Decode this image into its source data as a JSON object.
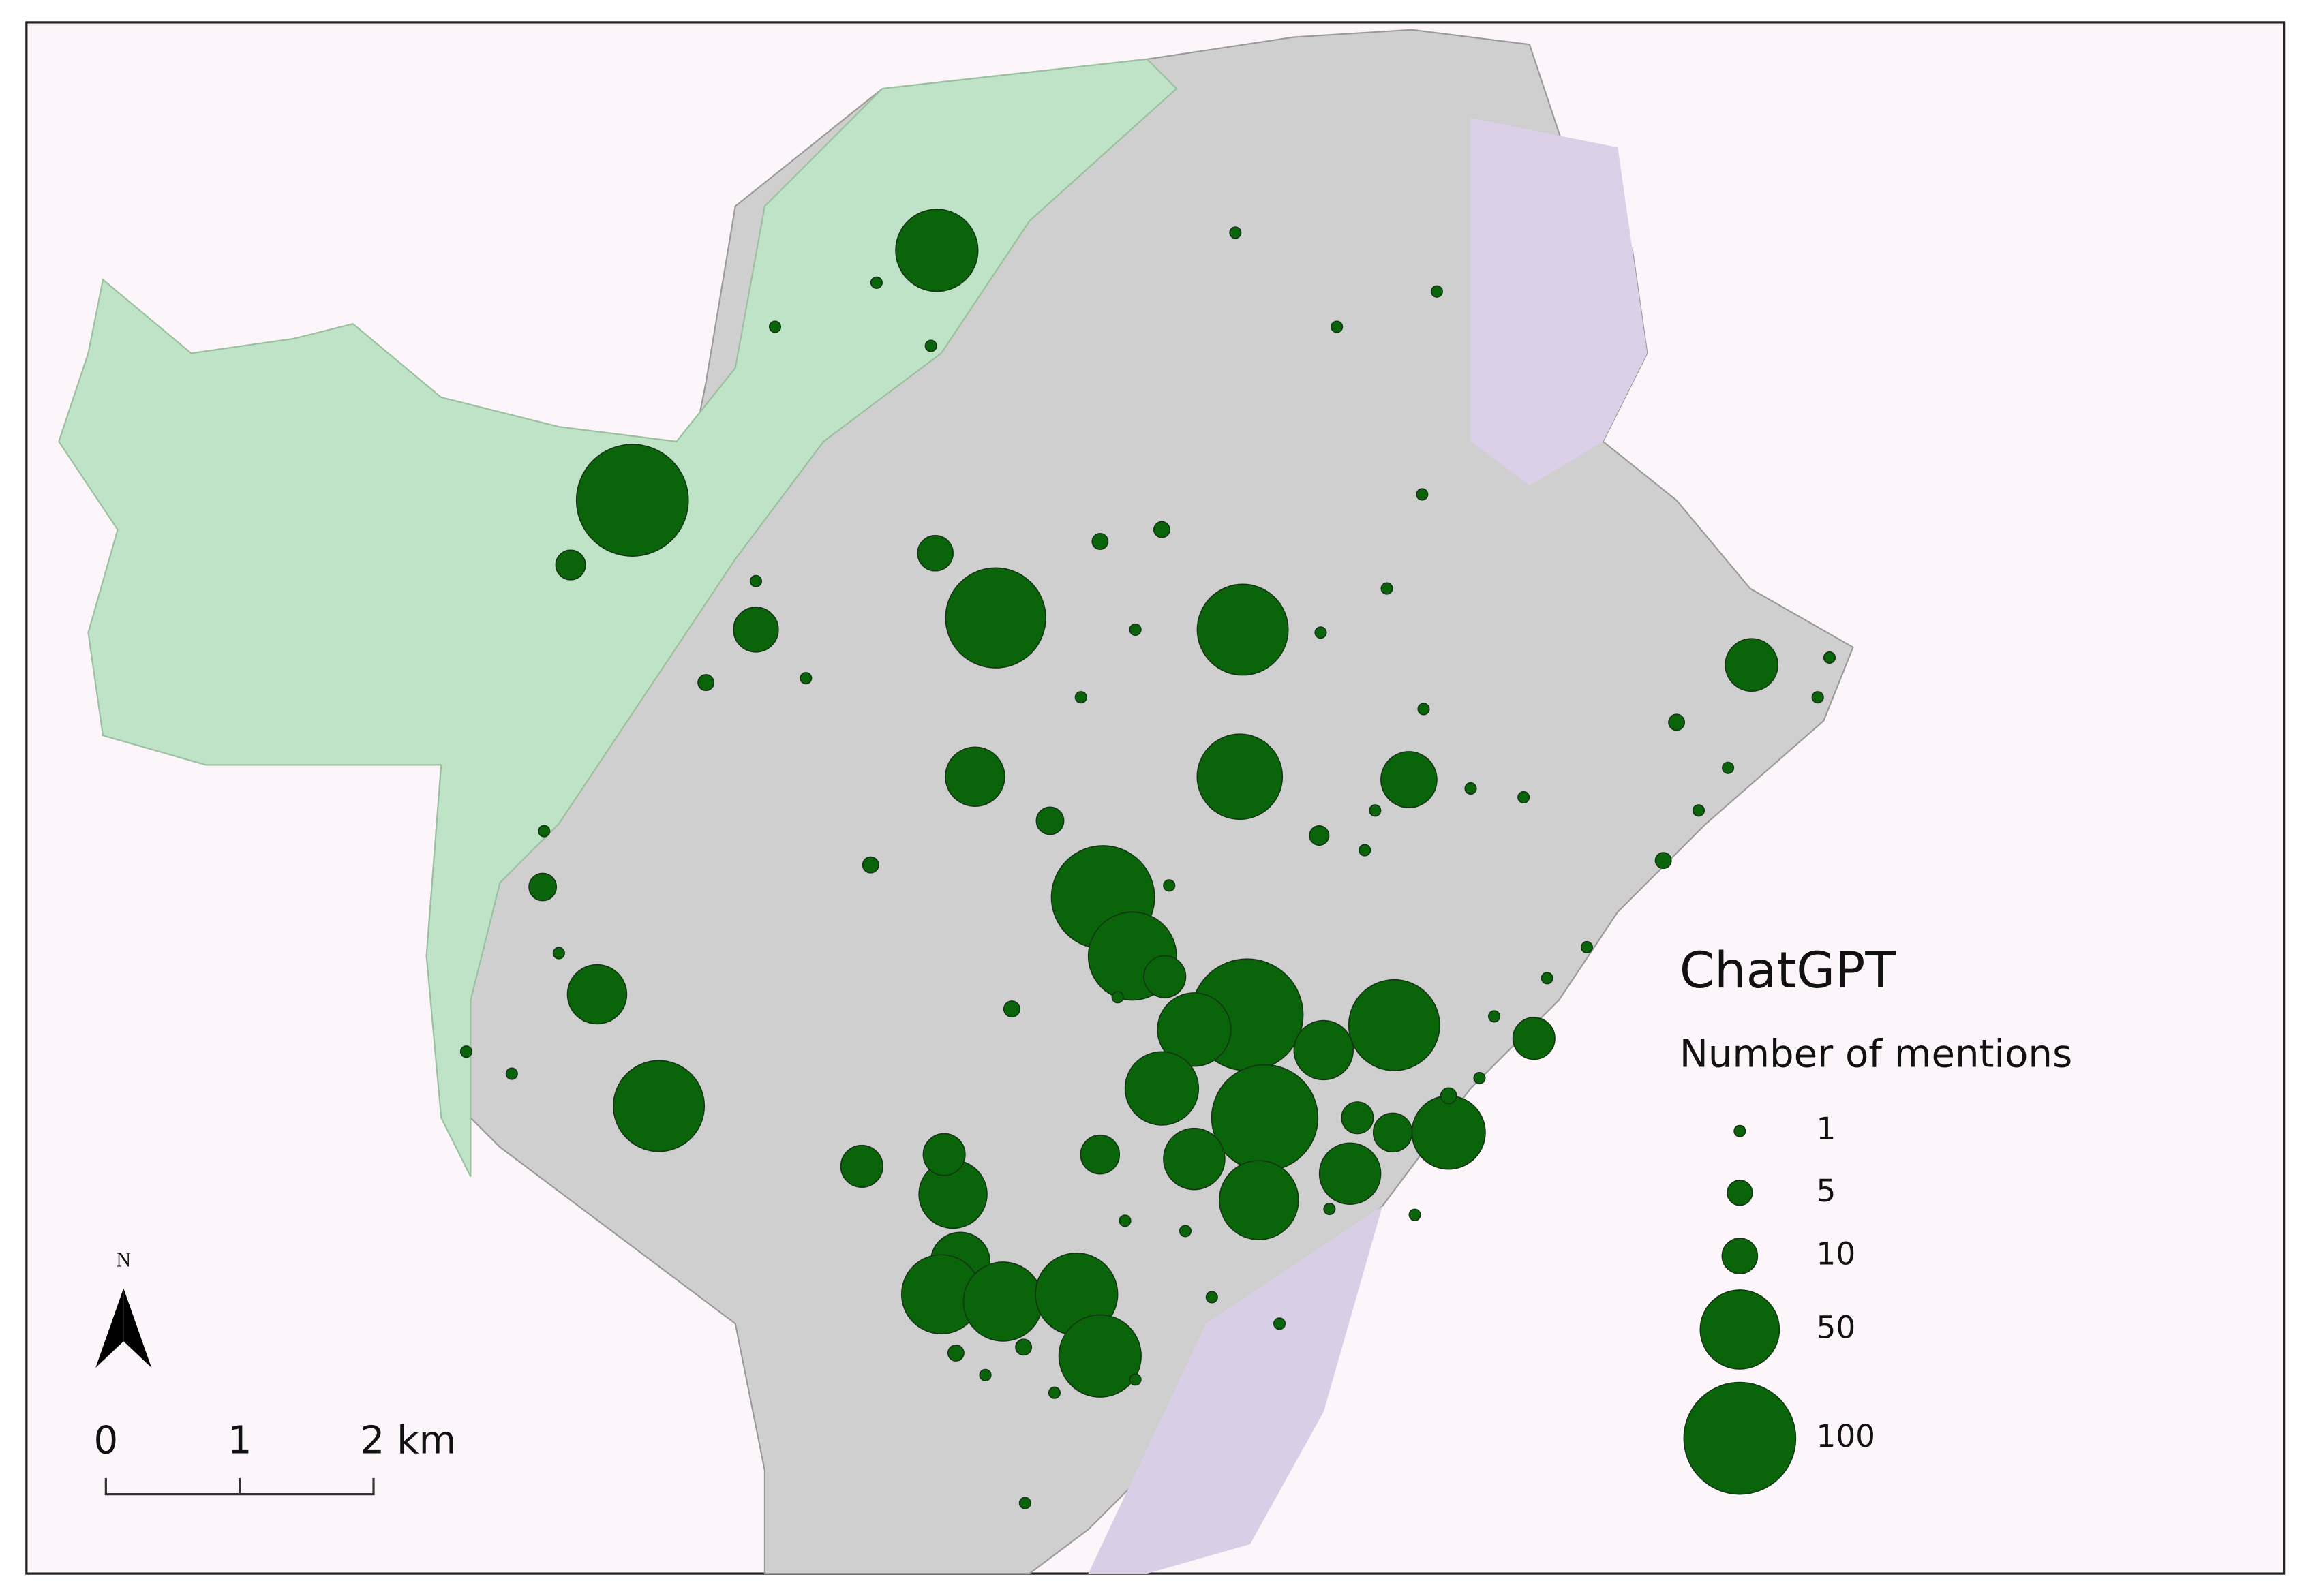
{
  "map": {
    "legend": {
      "title": "ChatGPT",
      "subtitle": "Number of mentions",
      "sizes": [
        1,
        5,
        10,
        50,
        100
      ]
    },
    "color": "#0a640a",
    "north": "N",
    "scale_bar": {
      "labels": [
        "0",
        "1",
        "2 km"
      ]
    },
    "mentions": [
      54,
      100,
      80,
      66,
      58,
      28,
      16,
      22,
      28,
      66,
      85,
      62,
      100,
      43,
      66,
      43,
      90,
      43,
      30,
      50,
      30,
      37,
      28,
      50,
      50,
      54,
      54,
      25,
      28,
      14,
      14,
      12,
      12,
      10,
      7,
      6,
      14,
      8,
      6,
      14,
      1,
      1,
      1,
      2,
      2,
      1,
      1,
      1,
      2,
      1,
      1,
      1,
      1,
      1,
      2,
      1,
      1,
      1,
      1,
      2,
      1,
      1,
      1,
      1,
      1,
      1,
      3,
      1,
      1,
      2,
      1,
      1,
      1,
      1,
      2,
      1,
      1,
      1,
      2,
      1,
      1,
      1,
      1,
      2,
      1,
      1,
      1,
      1,
      2,
      1,
      1,
      1,
      1
    ]
  }
}
